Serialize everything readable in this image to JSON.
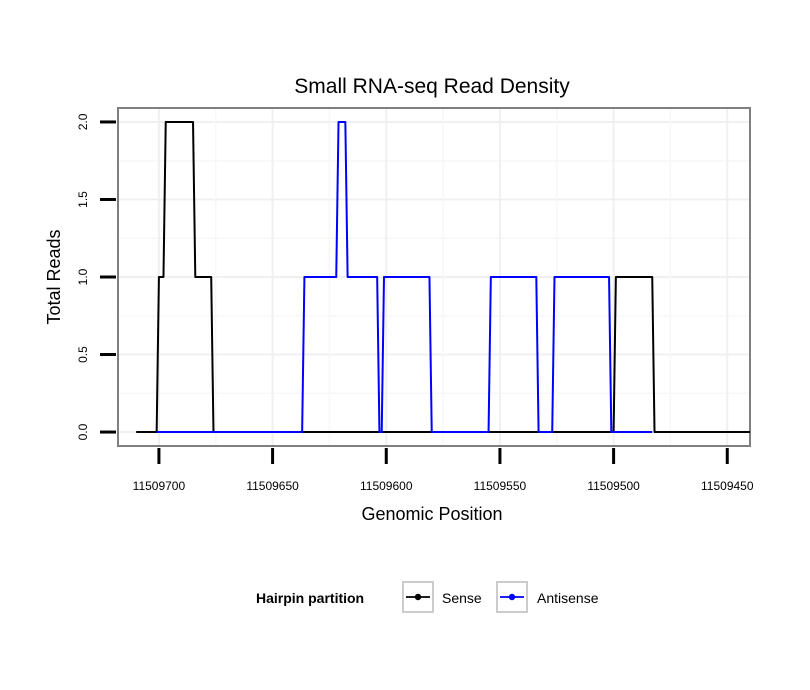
{
  "chart_data": {
    "type": "line",
    "title": "Small RNA-seq Read Density",
    "xlabel": "Genomic Position",
    "ylabel": "Total Reads",
    "xlim": [
      11509718,
      11509440
    ],
    "x_reversed": true,
    "ylim": [
      -0.09,
      2.09
    ],
    "x_ticks": [
      11509700,
      11509650,
      11509600,
      11509550,
      11509500,
      11509450
    ],
    "x_tick_labels": [
      "11509700",
      "11509650",
      "11509600",
      "11509550",
      "11509500",
      "11509450"
    ],
    "y_ticks": [
      0.0,
      0.5,
      1.0,
      1.5,
      2.0
    ],
    "y_tick_labels": [
      "0.0",
      "0.5",
      "1.0",
      "1.5",
      "2.0"
    ],
    "grid": true,
    "legend": {
      "title": "Hairpin partition",
      "position": "bottom",
      "entries": [
        "Sense",
        "Antisense"
      ]
    },
    "series": [
      {
        "name": "Sense",
        "color": "#000000",
        "x": [
          11509710,
          11509701,
          11509700,
          11509698,
          11509697,
          11509685,
          11509684,
          11509677,
          11509676,
          11509673,
          11509500,
          11509499,
          11509483,
          11509482,
          11509440
        ],
        "y": [
          0,
          0,
          1,
          1,
          2,
          2,
          1,
          1,
          0,
          0,
          0,
          1,
          1,
          0,
          0
        ]
      },
      {
        "name": "Antisense",
        "color": "#0000ff",
        "x": [
          11509701,
          11509637,
          11509636,
          11509622,
          11509621,
          11509618,
          11509617,
          11509604,
          11509603,
          11509602,
          11509601,
          11509581,
          11509580,
          11509555,
          11509554,
          11509534,
          11509533,
          11509527,
          11509526,
          11509502,
          11509501,
          11509483
        ],
        "y": [
          0,
          0,
          1,
          1,
          2,
          2,
          1,
          1,
          0,
          0,
          1,
          1,
          0,
          0,
          1,
          1,
          0,
          0,
          1,
          1,
          0,
          0
        ]
      }
    ]
  }
}
